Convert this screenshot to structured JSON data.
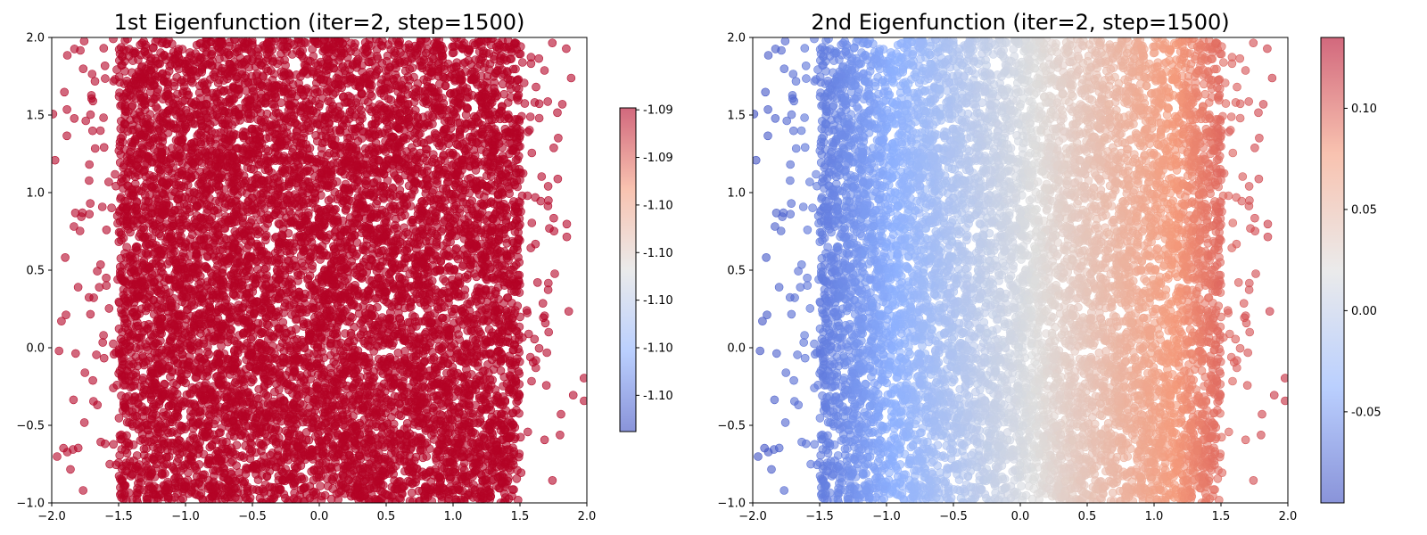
{
  "chart_data": [
    {
      "type": "scatter",
      "title": "1st Eigenfunction (iter=2, step=1500)",
      "xlabel": "",
      "ylabel": "",
      "xlim": [
        -2.0,
        2.0
      ],
      "ylim": [
        -1.0,
        2.0
      ],
      "x_ticks": [
        "−2.0",
        "−1.5",
        "−1.0",
        "−0.5",
        "0.0",
        "0.5",
        "1.0",
        "1.5",
        "2.0"
      ],
      "x_tick_values": [
        -2.0,
        -1.5,
        -1.0,
        -0.5,
        0.0,
        0.5,
        1.0,
        1.5,
        2.0
      ],
      "y_ticks": [
        "−1.0",
        "−0.5",
        "0.0",
        "0.5",
        "1.0",
        "1.5",
        "2.0"
      ],
      "y_tick_values": [
        -1.0,
        -0.5,
        0.0,
        0.5,
        1.0,
        1.5,
        2.0
      ],
      "colormap": "coolwarm",
      "marker_color": "#b40426",
      "alpha": 0.6,
      "colorbar": {
        "range_fraction": [
          0.0,
          1.0
        ],
        "tick_labels": [
          "-1.10",
          "-1.10",
          "-1.10",
          "-1.10",
          "-1.10",
          "-1.09",
          "-1.09"
        ],
        "tick_fractions": [
          0.112,
          0.259,
          0.406,
          0.553,
          0.7,
          0.847,
          0.994
        ]
      },
      "data_description_visible": "dense band of points for x in about [-1.5, 1.5], sparse points beyond"
    },
    {
      "type": "scatter",
      "title": "2nd Eigenfunction (iter=2, step=1500)",
      "xlabel": "",
      "ylabel": "",
      "xlim": [
        -2.0,
        2.0
      ],
      "ylim": [
        -1.0,
        2.0
      ],
      "x_ticks": [
        "−2.0",
        "−1.5",
        "−1.0",
        "−0.5",
        "0.0",
        "0.5",
        "1.0",
        "1.5",
        "2.0"
      ],
      "x_tick_values": [
        -2.0,
        -1.5,
        -1.0,
        -0.5,
        0.0,
        0.5,
        1.0,
        1.5,
        2.0
      ],
      "y_ticks": [
        "−1.0",
        "−0.5",
        "0.0",
        "0.5",
        "1.0",
        "1.5",
        "2.0"
      ],
      "y_tick_values": [
        -1.0,
        -0.5,
        0.0,
        0.5,
        1.0,
        1.5,
        2.0
      ],
      "colormap": "coolwarm",
      "alpha": 0.6,
      "colorbar": {
        "range": [
          -0.095,
          0.135
        ],
        "tick_labels": [
          "-0.05",
          "0.00",
          "0.05",
          "0.10"
        ],
        "tick_values": [
          -0.05,
          0.0,
          0.05,
          0.1
        ]
      },
      "color_mapping": "value increases with x, from about -0.095 at x=-2 to about 0.135 at x=2"
    }
  ]
}
